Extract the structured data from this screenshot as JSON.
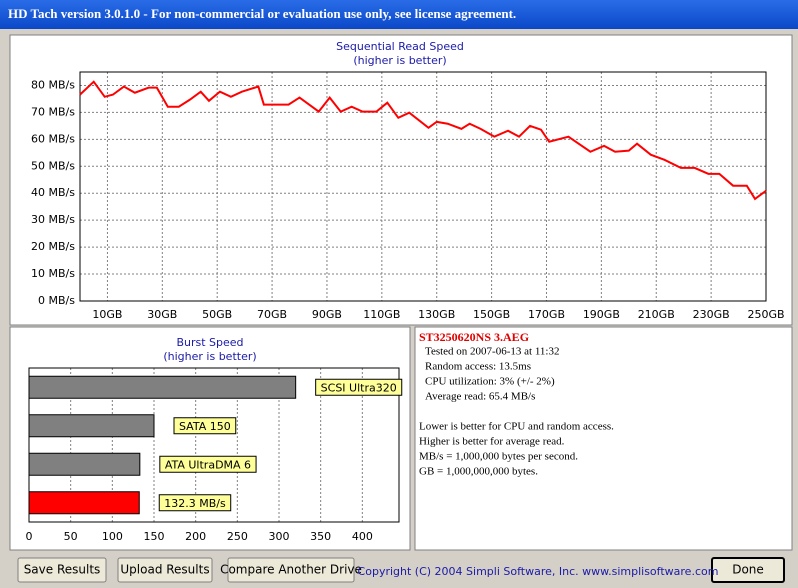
{
  "window_title": "HD Tach version 3.0.1.0  - For non-commercial or evaluation use only, see license agreement.",
  "chart_data": [
    {
      "type": "line",
      "title": "Sequential Read Speed",
      "subtitle": "(higher is better)",
      "x": [
        0,
        5,
        9,
        12,
        16,
        20,
        25,
        28,
        32,
        36,
        40,
        44,
        47,
        51,
        55,
        59,
        65,
        67,
        76,
        80,
        87,
        91,
        95,
        99,
        103,
        108,
        112,
        116,
        120,
        127,
        130,
        134,
        139,
        142,
        146,
        151,
        156,
        160,
        164,
        168,
        171,
        178,
        186,
        191,
        195,
        200,
        203,
        208,
        213,
        219,
        224,
        229,
        233,
        238,
        243,
        246,
        250
      ],
      "values": [
        76.6,
        81.4,
        75.8,
        76.6,
        79.6,
        77.3,
        79.2,
        79.2,
        72.1,
        72.1,
        74.7,
        77.7,
        74.3,
        77.7,
        75.8,
        77.7,
        79.6,
        72.9,
        72.9,
        75.5,
        70.3,
        75.5,
        70.3,
        72.1,
        70.3,
        70.3,
        73.6,
        68,
        69.9,
        64.3,
        66.5,
        65.8,
        63.9,
        65.8,
        63.9,
        61,
        63.2,
        61,
        65,
        63.6,
        59.1,
        61,
        55.4,
        57.6,
        55.4,
        55.8,
        58.4,
        54.3,
        52.4,
        49.4,
        49.4,
        47.2,
        47.2,
        42.8,
        42.8,
        37.9,
        40.9
      ],
      "color": "#ff0000",
      "xlim": [
        0,
        250
      ],
      "xticks": [
        {
          "value": 10,
          "label": "10GB"
        },
        {
          "value": 30,
          "label": "30GB"
        },
        {
          "value": 50,
          "label": "50GB"
        },
        {
          "value": 70,
          "label": "70GB"
        },
        {
          "value": 90,
          "label": "90GB"
        },
        {
          "value": 110,
          "label": "110GB"
        },
        {
          "value": 130,
          "label": "130GB"
        },
        {
          "value": 150,
          "label": "150GB"
        },
        {
          "value": 170,
          "label": "170GB"
        },
        {
          "value": 190,
          "label": "190GB"
        },
        {
          "value": 210,
          "label": "210GB"
        },
        {
          "value": 230,
          "label": "230GB"
        },
        {
          "value": 250,
          "label": "250GB"
        }
      ],
      "ylim": [
        0,
        85
      ],
      "yticks": [
        {
          "value": 0,
          "label": "0 MB/s"
        },
        {
          "value": 10,
          "label": "10 MB/s"
        },
        {
          "value": 20,
          "label": "20 MB/s"
        },
        {
          "value": 30,
          "label": "30 MB/s"
        },
        {
          "value": 40,
          "label": "40 MB/s"
        },
        {
          "value": 50,
          "label": "50 MB/s"
        },
        {
          "value": 60,
          "label": "60 MB/s"
        },
        {
          "value": 70,
          "label": "70 MB/s"
        },
        {
          "value": 80,
          "label": "80 MB/s"
        }
      ],
      "grid": true
    },
    {
      "type": "bar",
      "horizontal": true,
      "title": "Burst Speed",
      "subtitle": "(higher is better)",
      "categories": [
        "SCSI Ultra320",
        "SATA 150",
        "ATA UltraDMA 6",
        null
      ],
      "values": [
        320,
        150,
        133,
        132.3
      ],
      "value_labels": [
        null,
        null,
        null,
        "132.3 MB/s"
      ],
      "colors": [
        "#808080",
        "#808080",
        "#808080",
        "#ff0000"
      ],
      "xlim": [
        0,
        444
      ],
      "xticks": [
        0,
        50,
        100,
        150,
        200,
        250,
        300,
        350,
        400
      ],
      "grid": true
    }
  ],
  "info": {
    "drive": "ST3250620NS 3.AEG",
    "lines": [
      "Tested on 2007-06-13 at 11:32",
      "Random access: 13.5ms",
      "CPU utilization: 3% (+/- 2%)",
      "Average read: 65.4 MB/s"
    ],
    "notes": [
      "Lower is better for CPU and random access.",
      "Higher is better for average read.",
      "MB/s = 1,000,000 bytes per second.",
      "GB = 1,000,000,000 bytes."
    ]
  },
  "buttons": [
    "Save Results",
    "Upload Results",
    "Compare Another Drive",
    "Done"
  ],
  "copyright": "Copyright (C) 2004 Simpli Software, Inc. www.simplisoftware.com"
}
